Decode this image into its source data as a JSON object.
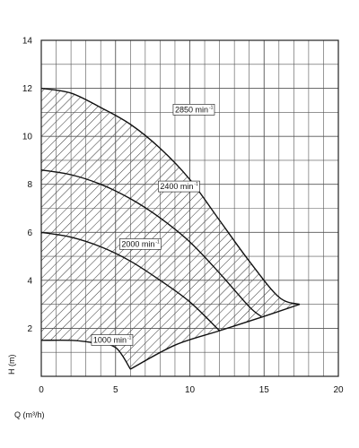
{
  "chart_data": {
    "type": "line",
    "xlabel": "Q (m³/h)",
    "ylabel": "H (m)",
    "xlim": [
      0,
      20
    ],
    "ylim": [
      0,
      14
    ],
    "x_ticks": [
      0,
      5,
      10,
      15,
      20
    ],
    "y_ticks": [
      2,
      4,
      6,
      8,
      10,
      12,
      14
    ],
    "grid": "on",
    "hatched_region": "operating range between 1000 min⁻¹ and 2850 min⁻¹ curves",
    "series": [
      {
        "name": "2850 min⁻¹",
        "label_text": "2850 min",
        "label_sup": "-1",
        "label_at": [
          9.0,
          11.0
        ],
        "points": [
          [
            0,
            12.0
          ],
          [
            2,
            11.8
          ],
          [
            4,
            11.2
          ],
          [
            6,
            10.5
          ],
          [
            8,
            9.5
          ],
          [
            10,
            8.2
          ],
          [
            12,
            6.5
          ],
          [
            14,
            4.8
          ],
          [
            16,
            3.3
          ],
          [
            17.4,
            3.0
          ]
        ]
      },
      {
        "name": "2400 min⁻¹",
        "label_text": "2400 min",
        "label_sup": "-1",
        "label_at": [
          8.0,
          7.8
        ],
        "points": [
          [
            0,
            8.6
          ],
          [
            2,
            8.4
          ],
          [
            4,
            8.0
          ],
          [
            6,
            7.4
          ],
          [
            8,
            6.6
          ],
          [
            10,
            5.6
          ],
          [
            12,
            4.3
          ],
          [
            14,
            2.9
          ],
          [
            14.8,
            2.5
          ]
        ]
      },
      {
        "name": "2000 min⁻¹",
        "label_text": "2000 min",
        "label_sup": "-1",
        "label_at": [
          5.4,
          5.4
        ],
        "points": [
          [
            0,
            6.0
          ],
          [
            2,
            5.8
          ],
          [
            4,
            5.4
          ],
          [
            6,
            4.8
          ],
          [
            8,
            4.0
          ],
          [
            10,
            3.1
          ],
          [
            12,
            1.9
          ]
        ]
      },
      {
        "name": "1000 min⁻¹",
        "label_text": "1000 min",
        "label_sup": "-1",
        "label_at": [
          3.5,
          1.4
        ],
        "points": [
          [
            0,
            1.5
          ],
          [
            2,
            1.5
          ],
          [
            3.5,
            1.4
          ],
          [
            5,
            1.2
          ],
          [
            6,
            0.3
          ]
        ]
      }
    ],
    "boundary_points": [
      [
        17.4,
        3.0
      ],
      [
        15,
        2.5
      ],
      [
        12,
        1.9
      ],
      [
        9,
        1.3
      ],
      [
        6,
        0.3
      ]
    ]
  }
}
